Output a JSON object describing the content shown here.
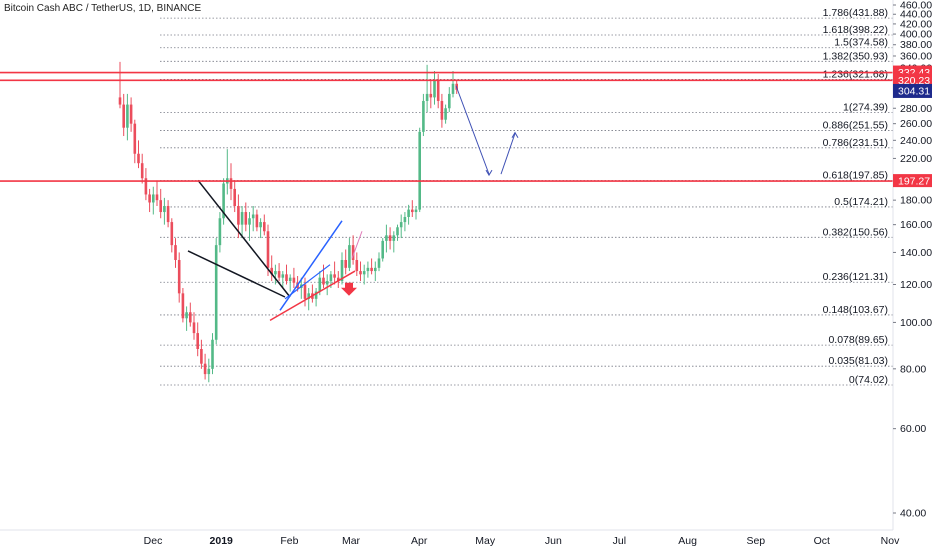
{
  "chart_title": "Bitcoin Cash ABC / TetherUS, 1D, BINANCE",
  "colors": {
    "up": "#53b987",
    "down": "#eb4d5c",
    "resistance": "#f23645",
    "current_price_bg": "#1e2a8c",
    "fib_line": "#787b86",
    "pattern_black": "#131722",
    "pattern_blue": "#2962ff",
    "arrow_down": "#f23645",
    "projection": "#3f51b5"
  },
  "chart_data": {
    "type": "candlestick",
    "symbol": "Bitcoin Cash ABC / TetherUS",
    "interval": "1D",
    "exchange": "BINANCE",
    "y_axis": {
      "scale": "log",
      "range": [
        35,
        470
      ],
      "tick_labels": [
        "40.00",
        "60.00",
        "80.00",
        "100.00",
        "120.00",
        "140.00",
        "160.00",
        "180.00",
        "200.00",
        "220.00",
        "240.00",
        "260.00",
        "280.00",
        "300.00",
        "320.00",
        "340.00",
        "360.00",
        "380.00",
        "400.00",
        "420.00",
        "440.00",
        "460.00"
      ]
    },
    "x_axis": {
      "tick_labels": [
        {
          "label": "Dec",
          "day": 20
        },
        {
          "label": "2019",
          "day": 51
        },
        {
          "label": "Feb",
          "day": 82
        },
        {
          "label": "Mar",
          "day": 110
        },
        {
          "label": "Apr",
          "day": 141
        },
        {
          "label": "May",
          "day": 171
        },
        {
          "label": "Jun",
          "day": 202
        },
        {
          "label": "Jul",
          "day": 232
        },
        {
          "label": "Aug",
          "day": 263
        },
        {
          "label": "Sep",
          "day": 294
        },
        {
          "label": "Oct",
          "day": 324
        },
        {
          "label": "Nov",
          "day": 355
        }
      ]
    },
    "fibonacci_levels": [
      {
        "label": "1.786(431.88)",
        "price": 431.88
      },
      {
        "label": "1.618(398.22)",
        "price": 398.22
      },
      {
        "label": "1.5(374.58)",
        "price": 374.58
      },
      {
        "label": "1.382(350.93)",
        "price": 350.93
      },
      {
        "label": "1.236(321.68)",
        "price": 321.68
      },
      {
        "label": "1(274.39)",
        "price": 274.39
      },
      {
        "label": "0.886(251.55)",
        "price": 251.55
      },
      {
        "label": "0.786(231.51)",
        "price": 231.51
      },
      {
        "label": "0.618(197.85)",
        "price": 197.85
      },
      {
        "label": "0.5(174.21)",
        "price": 174.21
      },
      {
        "label": "0.382(150.56)",
        "price": 150.56
      },
      {
        "label": "0.236(121.31)",
        "price": 121.31
      },
      {
        "label": "0.148(103.67)",
        "price": 103.67
      },
      {
        "label": "0.078(89.65)",
        "price": 89.65
      },
      {
        "label": "0.035(81.03)",
        "price": 81.03
      },
      {
        "label": "0(74.02)",
        "price": 74.02
      }
    ],
    "horizontal_lines": [
      {
        "label": "332.43",
        "price": 332.43
      },
      {
        "label": "320.23",
        "price": 320.23
      },
      {
        "label": "197.27",
        "price": 197.27
      }
    ],
    "current_price": {
      "label": "304.31",
      "price": 304.31
    },
    "candles": [
      [
        0,
        295,
        350,
        280,
        285
      ],
      [
        1,
        285,
        300,
        245,
        255
      ],
      [
        2,
        255,
        300,
        240,
        285
      ],
      [
        3,
        285,
        295,
        250,
        260
      ],
      [
        4,
        260,
        265,
        215,
        225
      ],
      [
        5,
        225,
        240,
        210,
        215
      ],
      [
        6,
        215,
        225,
        195,
        200
      ],
      [
        7,
        200,
        210,
        180,
        185
      ],
      [
        8,
        185,
        190,
        170,
        178
      ],
      [
        9,
        178,
        192,
        168,
        185
      ],
      [
        10,
        185,
        198,
        175,
        180
      ],
      [
        11,
        180,
        190,
        165,
        170
      ],
      [
        12,
        170,
        182,
        160,
        175
      ],
      [
        13,
        175,
        180,
        158,
        162
      ],
      [
        14,
        162,
        165,
        140,
        145
      ],
      [
        15,
        145,
        150,
        130,
        135
      ],
      [
        16,
        135,
        140,
        110,
        115
      ],
      [
        17,
        115,
        118,
        100,
        102
      ],
      [
        18,
        102,
        108,
        96,
        105
      ],
      [
        19,
        105,
        110,
        98,
        100
      ],
      [
        20,
        100,
        105,
        92,
        95
      ],
      [
        21,
        95,
        100,
        85,
        88
      ],
      [
        22,
        88,
        92,
        80,
        82
      ],
      [
        23,
        82,
        86,
        76,
        78
      ],
      [
        24,
        78,
        84,
        75,
        80
      ],
      [
        25,
        80,
        95,
        78,
        92
      ],
      [
        26,
        92,
        150,
        90,
        145
      ],
      [
        27,
        145,
        170,
        140,
        165
      ],
      [
        28,
        165,
        200,
        160,
        195
      ],
      [
        29,
        195,
        230,
        185,
        200
      ],
      [
        30,
        200,
        215,
        180,
        190
      ],
      [
        31,
        190,
        198,
        170,
        175
      ],
      [
        32,
        175,
        185,
        150,
        160
      ],
      [
        33,
        160,
        175,
        150,
        170
      ],
      [
        34,
        170,
        178,
        155,
        160
      ],
      [
        35,
        160,
        170,
        148,
        165
      ],
      [
        36,
        165,
        175,
        155,
        168
      ],
      [
        37,
        168,
        172,
        155,
        158
      ],
      [
        38,
        158,
        165,
        150,
        162
      ],
      [
        39,
        162,
        168,
        152,
        155
      ],
      [
        40,
        155,
        160,
        125,
        130
      ],
      [
        41,
        130,
        138,
        122,
        126
      ],
      [
        42,
        126,
        132,
        120,
        128
      ],
      [
        43,
        128,
        133,
        122,
        124
      ],
      [
        44,
        124,
        128,
        118,
        126
      ],
      [
        45,
        126,
        132,
        120,
        122
      ],
      [
        46,
        122,
        126,
        116,
        124
      ],
      [
        47,
        124,
        130,
        118,
        121
      ],
      [
        48,
        121,
        125,
        116,
        118
      ],
      [
        49,
        118,
        124,
        112,
        120
      ],
      [
        50,
        120,
        124,
        108,
        112
      ],
      [
        51,
        112,
        118,
        106,
        115
      ],
      [
        52,
        115,
        120,
        110,
        112
      ],
      [
        53,
        112,
        118,
        108,
        116
      ],
      [
        54,
        116,
        128,
        114,
        124
      ],
      [
        55,
        124,
        132,
        118,
        120
      ],
      [
        56,
        120,
        126,
        114,
        122
      ],
      [
        57,
        122,
        128,
        118,
        126
      ],
      [
        58,
        126,
        134,
        120,
        124
      ],
      [
        59,
        124,
        128,
        118,
        122
      ],
      [
        60,
        122,
        140,
        120,
        135
      ],
      [
        61,
        135,
        142,
        126,
        130
      ],
      [
        62,
        130,
        150,
        128,
        145
      ],
      [
        63,
        145,
        152,
        132,
        135
      ],
      [
        64,
        135,
        140,
        125,
        128
      ],
      [
        65,
        128,
        134,
        122,
        126
      ],
      [
        66,
        126,
        132,
        120,
        128
      ],
      [
        67,
        128,
        134,
        124,
        130
      ],
      [
        68,
        130,
        136,
        126,
        128
      ],
      [
        69,
        128,
        134,
        122,
        130
      ],
      [
        70,
        130,
        140,
        128,
        136
      ],
      [
        71,
        136,
        150,
        134,
        148
      ],
      [
        72,
        148,
        160,
        140,
        152
      ],
      [
        73,
        152,
        158,
        142,
        148
      ],
      [
        74,
        148,
        155,
        140,
        152
      ],
      [
        75,
        152,
        160,
        148,
        158
      ],
      [
        76,
        158,
        168,
        150,
        162
      ],
      [
        77,
        162,
        170,
        155,
        166
      ],
      [
        78,
        166,
        176,
        160,
        172
      ],
      [
        79,
        172,
        180,
        166,
        170
      ],
      [
        80,
        170,
        175,
        164,
        172
      ],
      [
        81,
        172,
        255,
        170,
        250
      ],
      [
        82,
        250,
        300,
        245,
        290
      ],
      [
        83,
        290,
        345,
        275,
        300
      ],
      [
        84,
        300,
        320,
        280,
        295
      ],
      [
        85,
        295,
        335,
        285,
        320
      ],
      [
        86,
        320,
        330,
        280,
        290
      ],
      [
        87,
        290,
        300,
        255,
        265
      ],
      [
        88,
        265,
        285,
        260,
        280
      ],
      [
        89,
        280,
        310,
        275,
        300
      ],
      [
        90,
        300,
        335,
        295,
        315
      ],
      [
        91,
        315,
        320,
        300,
        306
      ]
    ],
    "candle_x_range": [
      0,
      91
    ]
  }
}
